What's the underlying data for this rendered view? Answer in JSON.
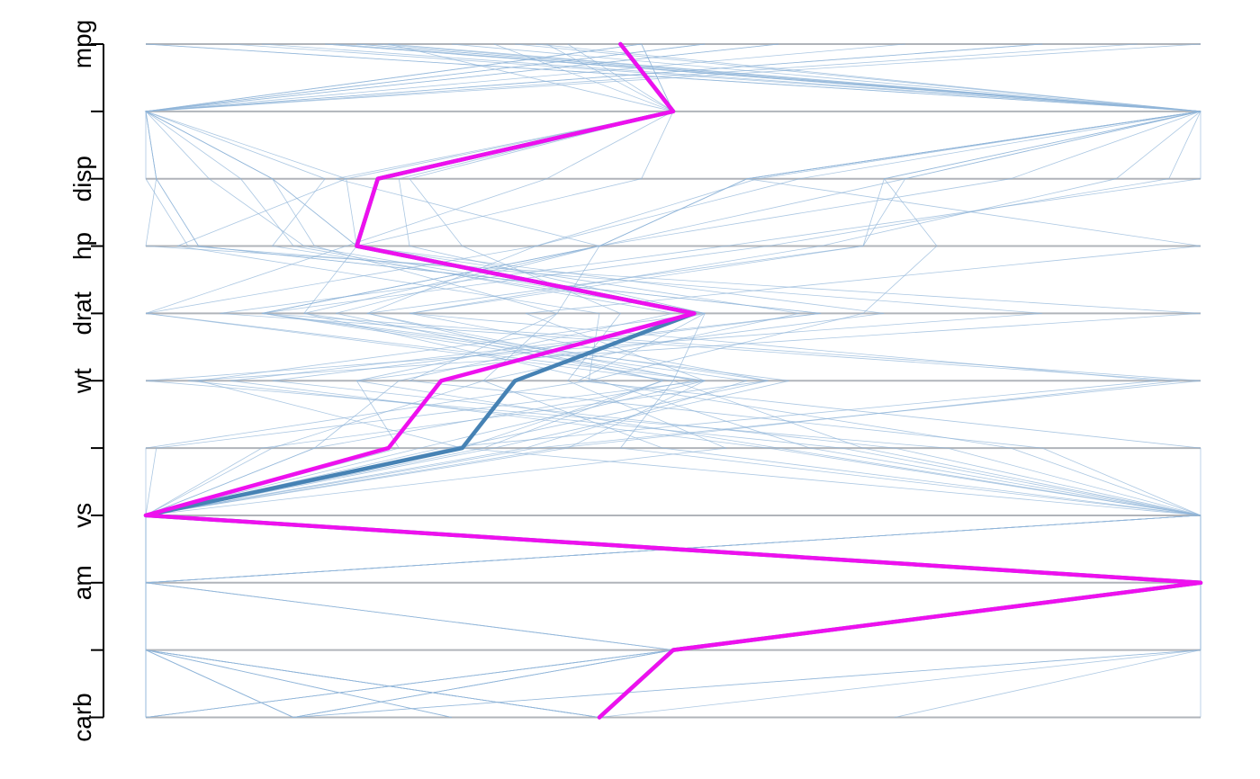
{
  "chart_data": {
    "type": "parallel_coordinates",
    "orientation": "horizontal-axes-stacked-vertically",
    "axes": [
      {
        "key": "mpg",
        "label": "mpg"
      },
      {
        "key": "cyl",
        "label": ""
      },
      {
        "key": "disp",
        "label": "disp"
      },
      {
        "key": "hp",
        "label": "hp"
      },
      {
        "key": "drat",
        "label": "drat"
      },
      {
        "key": "wt",
        "label": "wt"
      },
      {
        "key": "qsec",
        "label": ""
      },
      {
        "key": "vs",
        "label": "vs"
      },
      {
        "key": "am",
        "label": "am"
      },
      {
        "key": "gear",
        "label": ""
      },
      {
        "key": "carb",
        "label": "carb"
      }
    ],
    "value_range": [
      0,
      1
    ],
    "scaling": "each variable scaled to its own min–max",
    "background_lines": [
      [
        0.45,
        0.5,
        0.22,
        0.2,
        0.52,
        0.28,
        0.23,
        0.0,
        1.0,
        0.5,
        0.43
      ],
      [
        0.47,
        0.5,
        0.19,
        0.2,
        0.53,
        0.24,
        0.16,
        0.0,
        1.0,
        0.5,
        0.43
      ],
      [
        0.53,
        0.0,
        0.09,
        0.14,
        0.5,
        0.2,
        0.6,
        1.0,
        1.0,
        0.5,
        0.0
      ],
      [
        0.47,
        0.5,
        0.47,
        0.2,
        0.15,
        0.43,
        0.63,
        1.0,
        0.0,
        0.0,
        0.0
      ],
      [
        0.35,
        1.0,
        0.72,
        0.43,
        0.18,
        0.49,
        0.3,
        0.0,
        0.0,
        0.0,
        0.14
      ],
      [
        0.33,
        0.5,
        0.38,
        0.19,
        0.0,
        0.5,
        0.68,
        1.0,
        0.0,
        0.0,
        0.0
      ],
      [
        0.17,
        1.0,
        0.72,
        0.68,
        0.21,
        0.52,
        0.16,
        0.0,
        0.0,
        0.0,
        0.43
      ],
      [
        0.6,
        0.0,
        0.19,
        0.03,
        0.43,
        0.42,
        0.82,
        1.0,
        0.0,
        0.5,
        0.14
      ],
      [
        0.53,
        0.0,
        0.17,
        0.12,
        0.53,
        0.41,
        1.0,
        1.0,
        0.0,
        0.5,
        0.14
      ],
      [
        0.38,
        0.5,
        0.24,
        0.25,
        0.53,
        0.5,
        0.45,
        1.0,
        0.0,
        0.5,
        0.43
      ],
      [
        0.23,
        1.0,
        0.57,
        0.43,
        0.11,
        0.61,
        0.33,
        0.0,
        0.0,
        0.0,
        0.29
      ],
      [
        0.29,
        1.0,
        0.57,
        0.43,
        0.11,
        0.57,
        0.36,
        0.0,
        0.0,
        0.0,
        0.29
      ],
      [
        0.08,
        1.0,
        0.57,
        0.43,
        0.11,
        0.53,
        0.4,
        0.0,
        0.0,
        0.0,
        0.29
      ],
      [
        0.0,
        1.0,
        1.0,
        0.55,
        0.07,
        0.98,
        0.39,
        0.0,
        0.0,
        0.0,
        0.43
      ],
      [
        0.0,
        1.0,
        0.97,
        0.59,
        0.11,
        1.0,
        0.37,
        0.0,
        0.0,
        0.0,
        0.43
      ],
      [
        0.18,
        1.0,
        0.92,
        0.64,
        0.25,
        0.96,
        0.28,
        0.0,
        0.0,
        0.0,
        0.43
      ],
      [
        0.94,
        0.0,
        0.01,
        0.05,
        0.64,
        0.12,
        0.71,
        1.0,
        1.0,
        0.5,
        0.0
      ],
      [
        0.85,
        0.0,
        0.01,
        0.0,
        1.0,
        0.04,
        0.66,
        1.0,
        1.0,
        0.5,
        0.14
      ],
      [
        1.0,
        0.0,
        0.0,
        0.04,
        0.85,
        0.0,
        0.76,
        1.0,
        1.0,
        0.5,
        0.0
      ],
      [
        0.47,
        0.0,
        0.12,
        0.16,
        0.39,
        0.25,
        0.85,
        1.0,
        0.0,
        0.0,
        0.0
      ],
      [
        0.22,
        1.0,
        0.62,
        0.37,
        0.0,
        0.53,
        0.26,
        0.0,
        0.0,
        0.0,
        0.14
      ],
      [
        0.2,
        1.0,
        0.58,
        0.37,
        0.21,
        0.49,
        0.32,
        0.0,
        0.0,
        0.0,
        0.14
      ],
      [
        0.11,
        1.0,
        0.7,
        0.68,
        0.25,
        0.59,
        0.11,
        0.0,
        0.0,
        0.0,
        0.43
      ],
      [
        0.37,
        1.0,
        0.82,
        0.43,
        0.15,
        0.59,
        0.29,
        0.0,
        0.0,
        0.0,
        0.14
      ],
      [
        0.72,
        0.0,
        0.01,
        0.05,
        0.64,
        0.08,
        0.59,
        1.0,
        1.0,
        0.5,
        0.0
      ],
      [
        0.6,
        0.0,
        0.12,
        0.2,
        0.7,
        0.2,
        0.24,
        0.0,
        1.0,
        1.0,
        0.14
      ],
      [
        0.85,
        0.0,
        0.06,
        0.15,
        0.53,
        0.05,
        0.3,
        1.0,
        1.0,
        1.0,
        0.14
      ],
      [
        0.2,
        1.0,
        0.7,
        0.75,
        0.68,
        0.42,
        0.0,
        0.0,
        1.0,
        1.0,
        0.43
      ],
      [
        0.4,
        0.5,
        0.18,
        0.43,
        0.39,
        0.32,
        0.12,
        0.0,
        1.0,
        1.0,
        0.71
      ],
      [
        0.17,
        1.0,
        0.57,
        1.0,
        0.36,
        0.53,
        0.01,
        0.0,
        1.0,
        1.0,
        1.0
      ],
      [
        0.47,
        0.0,
        0.12,
        0.2,
        0.62,
        0.32,
        0.49,
        1.0,
        1.0,
        0.5,
        0.14
      ],
      [
        0.23,
        0.5,
        0.25,
        0.3,
        0.45,
        0.4,
        0.55,
        0.0,
        1.0,
        0.5,
        0.43
      ]
    ],
    "highlighted_lines": [
      {
        "color": "#4682b4",
        "values": [
          0.45,
          0.5,
          0.22,
          0.2,
          0.52,
          0.35,
          0.3,
          0.0,
          1.0,
          0.5,
          0.43
        ]
      },
      {
        "color": "#ee10ee",
        "values": [
          0.45,
          0.5,
          0.22,
          0.2,
          0.52,
          0.28,
          0.23,
          0.0,
          1.0,
          0.5,
          0.43
        ]
      }
    ],
    "colors": {
      "background_line": "#8fb4d8",
      "grid_line": "#b0b4ba",
      "axis": "#000000"
    },
    "grid": true,
    "legend": "none"
  }
}
